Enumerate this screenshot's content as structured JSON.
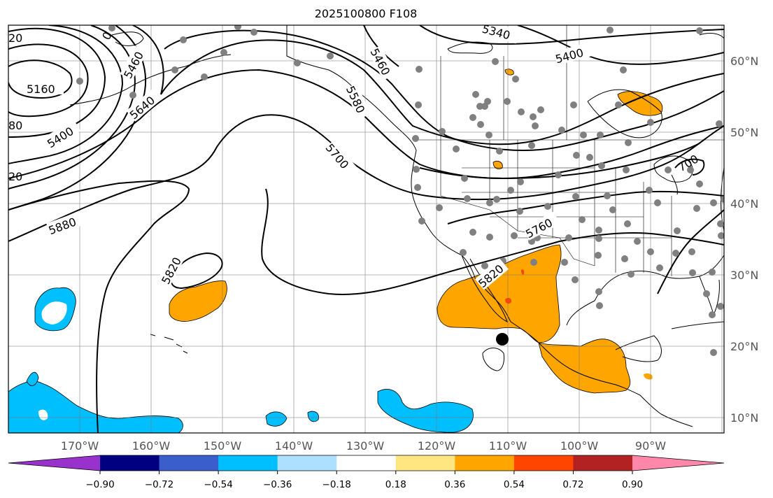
{
  "title": "2025100800 F108",
  "lon_labels": [
    "170°W",
    "160°W",
    "150°W",
    "140°W",
    "130°W",
    "120°W",
    "110°W",
    "100°W",
    "90°W"
  ],
  "lat_labels": [
    "60°N",
    "50°N",
    "40°N",
    "30°N",
    "20°N",
    "10°N"
  ],
  "contour_labels": [
    "5160",
    "5400",
    "5460",
    "5640",
    "5880",
    "5820",
    "5700",
    "5760",
    "5820",
    "5460",
    "5400",
    "5340",
    "5580",
    "20",
    "80",
    "20",
    "0",
    "700"
  ],
  "colorbar": {
    "ticks": [
      "−0.90",
      "−0.72",
      "−0.54",
      "−0.36",
      "−0.18",
      "0.18",
      "0.36",
      "0.54",
      "0.72",
      "0.90"
    ],
    "colors": [
      "#9932CC",
      "#000080",
      "#3A5FCD",
      "#00BFFF",
      "#ADDFFF",
      "#FFFFFF",
      "#FFE680",
      "#FFA500",
      "#FF4500",
      "#B22222",
      "#FF88AA"
    ]
  }
}
